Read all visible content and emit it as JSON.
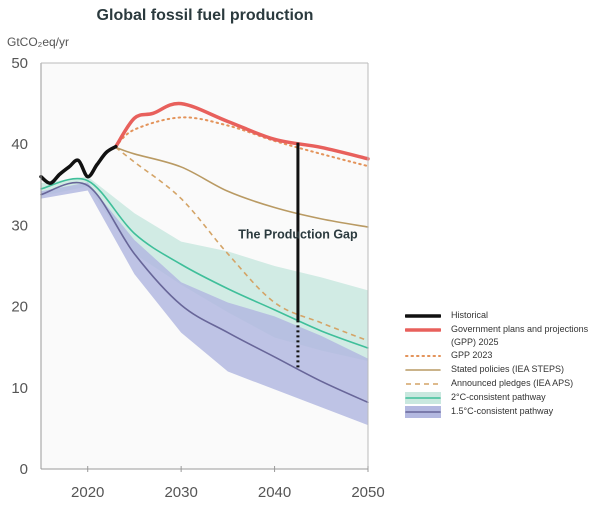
{
  "chart_data": {
    "type": "line",
    "title": "Global fossil fuel production",
    "ylabel": "GtCO₂eq/yr",
    "xlabel": "",
    "xlim": [
      2015,
      2050
    ],
    "ylim": [
      0,
      50
    ],
    "x_ticks": [
      2020,
      2030,
      2040,
      2050
    ],
    "y_ticks": [
      0,
      10,
      20,
      30,
      40,
      50
    ],
    "grid": false,
    "legend_position": "right",
    "annotation": {
      "text": "The Production Gap",
      "x": 2042.5,
      "solid_range": [
        18.3,
        40.2
      ],
      "dotted_range": [
        12.5,
        18.3
      ]
    },
    "series": [
      {
        "name": "Historical",
        "style": "solid-thick",
        "color": "#111111",
        "points": [
          [
            2015,
            36.0
          ],
          [
            2016,
            35.2
          ],
          [
            2017,
            36.3
          ],
          [
            2018,
            37.2
          ],
          [
            2019,
            38.0
          ],
          [
            2020,
            36.0
          ],
          [
            2021,
            37.5
          ],
          [
            2022,
            39.0
          ],
          [
            2023,
            39.7
          ]
        ]
      },
      {
        "name": "Government plans and projections (GPP) 2025",
        "style": "solid-thick",
        "color": "#e8605c",
        "points": [
          [
            2023,
            39.7
          ],
          [
            2025,
            43.2
          ],
          [
            2027,
            43.8
          ],
          [
            2030,
            45.0
          ],
          [
            2035,
            42.8
          ],
          [
            2040,
            40.6
          ],
          [
            2045,
            39.6
          ],
          [
            2050,
            38.2
          ]
        ]
      },
      {
        "name": "GPP 2023",
        "style": "dotted",
        "color": "#e3935a",
        "points": [
          [
            2023,
            39.7
          ],
          [
            2025,
            41.8
          ],
          [
            2030,
            43.3
          ],
          [
            2035,
            42.3
          ],
          [
            2040,
            40.4
          ],
          [
            2045,
            38.8
          ],
          [
            2050,
            37.3
          ]
        ]
      },
      {
        "name": "Stated policies (IEA STEPS)",
        "style": "solid",
        "color": "#b99a63",
        "points": [
          [
            2023,
            39.6
          ],
          [
            2025,
            38.8
          ],
          [
            2030,
            37.2
          ],
          [
            2035,
            34.2
          ],
          [
            2040,
            32.2
          ],
          [
            2045,
            30.8
          ],
          [
            2050,
            29.8
          ]
        ]
      },
      {
        "name": "Announced pledges (IEA APS)",
        "style": "dashed",
        "color": "#d4a467",
        "points": [
          [
            2023,
            39.6
          ],
          [
            2025,
            37.8
          ],
          [
            2030,
            33.3
          ],
          [
            2035,
            26.5
          ],
          [
            2040,
            20.5
          ],
          [
            2045,
            18.0
          ],
          [
            2050,
            15.8
          ]
        ]
      },
      {
        "name": "2°C-consistent pathway",
        "style": "solid",
        "color": "#3fbf9a",
        "band_color": "#c9e8df",
        "points": [
          [
            2015,
            34.5
          ],
          [
            2020,
            35.5
          ],
          [
            2025,
            29.0
          ],
          [
            2030,
            25.2
          ],
          [
            2035,
            22.2
          ],
          [
            2040,
            19.6
          ],
          [
            2045,
            17.0
          ],
          [
            2050,
            14.9
          ]
        ],
        "band_upper": [
          [
            2015,
            35.2
          ],
          [
            2020,
            36.0
          ],
          [
            2025,
            31.5
          ],
          [
            2030,
            28.0
          ],
          [
            2035,
            26.8
          ],
          [
            2040,
            25.0
          ],
          [
            2045,
            23.6
          ],
          [
            2050,
            22.0
          ]
        ],
        "band_lower": [
          [
            2015,
            33.6
          ],
          [
            2020,
            34.8
          ],
          [
            2025,
            26.5
          ],
          [
            2030,
            22.7
          ],
          [
            2035,
            19.3
          ],
          [
            2040,
            16.2
          ],
          [
            2045,
            14.6
          ],
          [
            2050,
            13.3
          ]
        ]
      },
      {
        "name": "1.5°C-consistent pathway",
        "style": "solid",
        "color": "#686699",
        "band_color": "#b3b8e0",
        "points": [
          [
            2015,
            33.8
          ],
          [
            2020,
            34.9
          ],
          [
            2025,
            26.5
          ],
          [
            2030,
            20.2
          ],
          [
            2035,
            16.8
          ],
          [
            2040,
            13.8
          ],
          [
            2045,
            10.8
          ],
          [
            2050,
            8.2
          ]
        ],
        "band_upper": [
          [
            2015,
            34.2
          ],
          [
            2020,
            35.3
          ],
          [
            2025,
            28.2
          ],
          [
            2030,
            23.0
          ],
          [
            2035,
            20.5
          ],
          [
            2040,
            18.8
          ],
          [
            2045,
            16.4
          ],
          [
            2050,
            13.6
          ]
        ],
        "band_lower": [
          [
            2015,
            33.3
          ],
          [
            2020,
            34.3
          ],
          [
            2025,
            24.0
          ],
          [
            2030,
            16.8
          ],
          [
            2035,
            12.0
          ],
          [
            2040,
            9.8
          ],
          [
            2045,
            7.6
          ],
          [
            2050,
            5.4
          ]
        ]
      }
    ]
  }
}
